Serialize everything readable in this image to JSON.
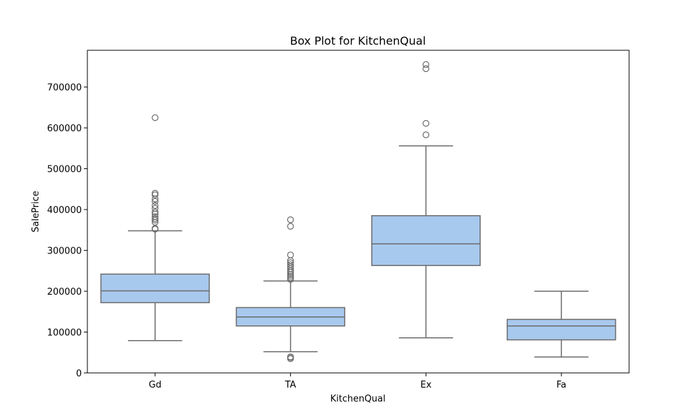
{
  "chart_data": {
    "type": "box",
    "title": "Box Plot for KitchenQual",
    "xlabel": "KitchenQual",
    "ylabel": "SalePrice",
    "ylim": [
      0,
      790000
    ],
    "yticks": [
      0,
      100000,
      200000,
      300000,
      400000,
      500000,
      600000,
      700000
    ],
    "ytick_labels": [
      "0",
      "100000",
      "200000",
      "300000",
      "400000",
      "500000",
      "600000",
      "700000"
    ],
    "grid": false,
    "legend": "none",
    "box_color": "#a8c9ee",
    "line_color": "#6b6b6b",
    "categories": [
      "Gd",
      "TA",
      "Ex",
      "Fa"
    ],
    "boxes": [
      {
        "category": "Gd",
        "whisker_low": 79000,
        "q1": 172000,
        "median": 201000,
        "q3": 242000,
        "whisker_high": 348000,
        "outliers": [
          354000,
          352000,
          369000,
          374000,
          378000,
          383000,
          389000,
          394000,
          403000,
          410000,
          420000,
          426000,
          436000,
          440000,
          625000
        ]
      },
      {
        "category": "TA",
        "whisker_low": 52000,
        "q1": 115000,
        "median": 137000,
        "q3": 160000,
        "whisker_high": 225000,
        "outliers": [
          34900,
          37900,
          39300,
          229000,
          233000,
          237000,
          241000,
          246000,
          250000,
          255000,
          260000,
          265000,
          270000,
          275000,
          289000,
          359000,
          375000
        ]
      },
      {
        "category": "Ex",
        "whisker_low": 86000,
        "q1": 263000,
        "median": 316000,
        "q3": 385000,
        "whisker_high": 556000,
        "outliers": [
          583000,
          611000,
          745000,
          755000
        ]
      },
      {
        "category": "Fa",
        "whisker_low": 39000,
        "q1": 81000,
        "median": 115000,
        "q3": 131000,
        "whisker_high": 200000,
        "outliers": []
      }
    ]
  }
}
